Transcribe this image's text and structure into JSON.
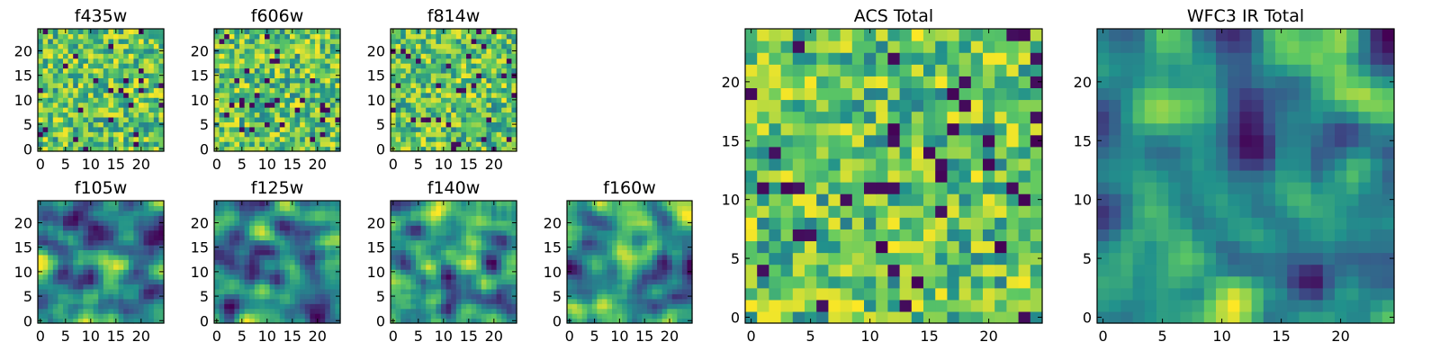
{
  "chart_data": [
    {
      "type": "heatmap",
      "title": "f435w",
      "xticks": [
        0,
        5,
        10,
        15,
        20
      ],
      "yticks": [
        0,
        5,
        10,
        15,
        20
      ],
      "xlim": [
        -0.5,
        24.5
      ],
      "ylim": [
        -0.5,
        24.5
      ],
      "grid": 25
    },
    {
      "type": "heatmap",
      "title": "f606w",
      "xticks": [
        0,
        5,
        10,
        15,
        20
      ],
      "yticks": [
        0,
        5,
        10,
        15,
        20
      ],
      "xlim": [
        -0.5,
        24.5
      ],
      "ylim": [
        -0.5,
        24.5
      ],
      "grid": 25
    },
    {
      "type": "heatmap",
      "title": "f814w",
      "xticks": [
        0,
        5,
        10,
        15,
        20
      ],
      "yticks": [
        0,
        5,
        10,
        15,
        20
      ],
      "xlim": [
        -0.5,
        24.5
      ],
      "ylim": [
        -0.5,
        24.5
      ],
      "grid": 25
    },
    {
      "type": "heatmap",
      "title": "f105w",
      "xticks": [
        0,
        5,
        10,
        15,
        20
      ],
      "yticks": [
        0,
        5,
        10,
        15,
        20
      ],
      "xlim": [
        -0.5,
        24.5
      ],
      "ylim": [
        -0.5,
        24.5
      ],
      "grid": 25
    },
    {
      "type": "heatmap",
      "title": "f125w",
      "xticks": [
        0,
        5,
        10,
        15,
        20
      ],
      "yticks": [
        0,
        5,
        10,
        15,
        20
      ],
      "xlim": [
        -0.5,
        24.5
      ],
      "ylim": [
        -0.5,
        24.5
      ],
      "grid": 25
    },
    {
      "type": "heatmap",
      "title": "f140w",
      "xticks": [
        0,
        5,
        10,
        15,
        20
      ],
      "yticks": [
        0,
        5,
        10,
        15,
        20
      ],
      "xlim": [
        -0.5,
        24.5
      ],
      "ylim": [
        -0.5,
        24.5
      ],
      "grid": 25
    },
    {
      "type": "heatmap",
      "title": "f160w",
      "xticks": [
        0,
        5,
        10,
        15,
        20
      ],
      "yticks": [
        0,
        5,
        10,
        15,
        20
      ],
      "xlim": [
        -0.5,
        24.5
      ],
      "ylim": [
        -0.5,
        24.5
      ],
      "grid": 25
    },
    {
      "type": "heatmap",
      "title": "ACS Total",
      "xticks": [
        0,
        5,
        10,
        15,
        20
      ],
      "yticks": [
        0,
        5,
        10,
        15,
        20
      ],
      "xlim": [
        -0.5,
        24.5
      ],
      "ylim": [
        -0.5,
        24.5
      ],
      "grid": 25
    },
    {
      "type": "heatmap",
      "title": "WFC3 IR Total",
      "xticks": [
        0,
        5,
        10,
        15,
        20
      ],
      "yticks": [
        0,
        5,
        10,
        15,
        20
      ],
      "xlim": [
        -0.5,
        24.5
      ],
      "ylim": [
        -0.5,
        24.5
      ],
      "grid": 25
    }
  ],
  "colormap": [
    "#440154",
    "#3b528b",
    "#21918c",
    "#5ec962",
    "#fde725"
  ]
}
